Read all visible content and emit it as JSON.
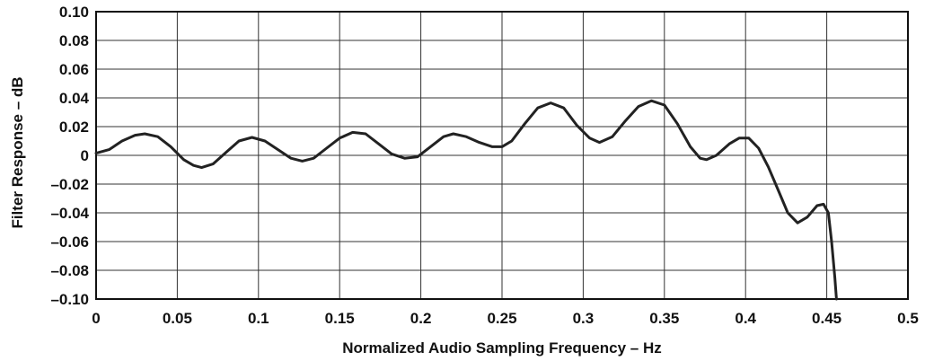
{
  "chart_data": {
    "type": "line",
    "title": "",
    "xlabel": "Normalized Audio Sampling Frequency – Hz",
    "ylabel": "Filter Response – dB",
    "xlim": [
      0,
      0.5
    ],
    "ylim": [
      -0.1,
      0.1
    ],
    "grid": true,
    "x_ticks": [
      0,
      0.05,
      0.1,
      0.15,
      0.2,
      0.25,
      0.3,
      0.35,
      0.4,
      0.45,
      0.5
    ],
    "x_tick_labels": [
      "0",
      "0.05",
      "0.1",
      "0.15",
      "0.2",
      "0.25",
      "0.3",
      "0.35",
      "0.4",
      "0.45",
      "0.5"
    ],
    "y_ticks": [
      0.1,
      0.08,
      0.06,
      0.04,
      0.02,
      0,
      -0.02,
      -0.04,
      -0.06,
      -0.08,
      -0.1
    ],
    "y_tick_labels": [
      "0.10",
      "0.08",
      "0.06",
      "0.04",
      "0.02",
      "0",
      "–0.02",
      "–0.04",
      "–0.06",
      "–0.08",
      "–0.10"
    ],
    "line_color": "#222222",
    "series": [
      {
        "points": [
          [
            0.0,
            0.0015
          ],
          [
            0.008,
            0.004
          ],
          [
            0.016,
            0.01
          ],
          [
            0.024,
            0.014
          ],
          [
            0.03,
            0.015
          ],
          [
            0.038,
            0.013
          ],
          [
            0.046,
            0.006
          ],
          [
            0.054,
            -0.003
          ],
          [
            0.06,
            -0.007
          ],
          [
            0.065,
            -0.0085
          ],
          [
            0.072,
            -0.006
          ],
          [
            0.08,
            0.002
          ],
          [
            0.088,
            0.01
          ],
          [
            0.096,
            0.0125
          ],
          [
            0.104,
            0.01
          ],
          [
            0.112,
            0.004
          ],
          [
            0.12,
            -0.002
          ],
          [
            0.127,
            -0.004
          ],
          [
            0.134,
            -0.002
          ],
          [
            0.142,
            0.005
          ],
          [
            0.15,
            0.012
          ],
          [
            0.158,
            0.016
          ],
          [
            0.166,
            0.015
          ],
          [
            0.174,
            0.008
          ],
          [
            0.182,
            0.001
          ],
          [
            0.19,
            -0.002
          ],
          [
            0.198,
            -0.001
          ],
          [
            0.206,
            0.006
          ],
          [
            0.214,
            0.013
          ],
          [
            0.22,
            0.015
          ],
          [
            0.228,
            0.013
          ],
          [
            0.236,
            0.009
          ],
          [
            0.244,
            0.006
          ],
          [
            0.25,
            0.006
          ],
          [
            0.256,
            0.01
          ],
          [
            0.264,
            0.022
          ],
          [
            0.272,
            0.033
          ],
          [
            0.28,
            0.0365
          ],
          [
            0.288,
            0.033
          ],
          [
            0.296,
            0.021
          ],
          [
            0.304,
            0.012
          ],
          [
            0.31,
            0.009
          ],
          [
            0.318,
            0.013
          ],
          [
            0.326,
            0.024
          ],
          [
            0.334,
            0.034
          ],
          [
            0.342,
            0.038
          ],
          [
            0.35,
            0.035
          ],
          [
            0.358,
            0.022
          ],
          [
            0.366,
            0.006
          ],
          [
            0.372,
            -0.002
          ],
          [
            0.376,
            -0.003
          ],
          [
            0.382,
            0.0
          ],
          [
            0.39,
            0.008
          ],
          [
            0.396,
            0.012
          ],
          [
            0.402,
            0.012
          ],
          [
            0.408,
            0.005
          ],
          [
            0.414,
            -0.008
          ],
          [
            0.42,
            -0.024
          ],
          [
            0.426,
            -0.04
          ],
          [
            0.432,
            -0.047
          ],
          [
            0.438,
            -0.043
          ],
          [
            0.444,
            -0.035
          ],
          [
            0.448,
            -0.034
          ],
          [
            0.451,
            -0.04
          ],
          [
            0.453,
            -0.06
          ],
          [
            0.455,
            -0.085
          ],
          [
            0.456,
            -0.1
          ]
        ]
      }
    ]
  }
}
